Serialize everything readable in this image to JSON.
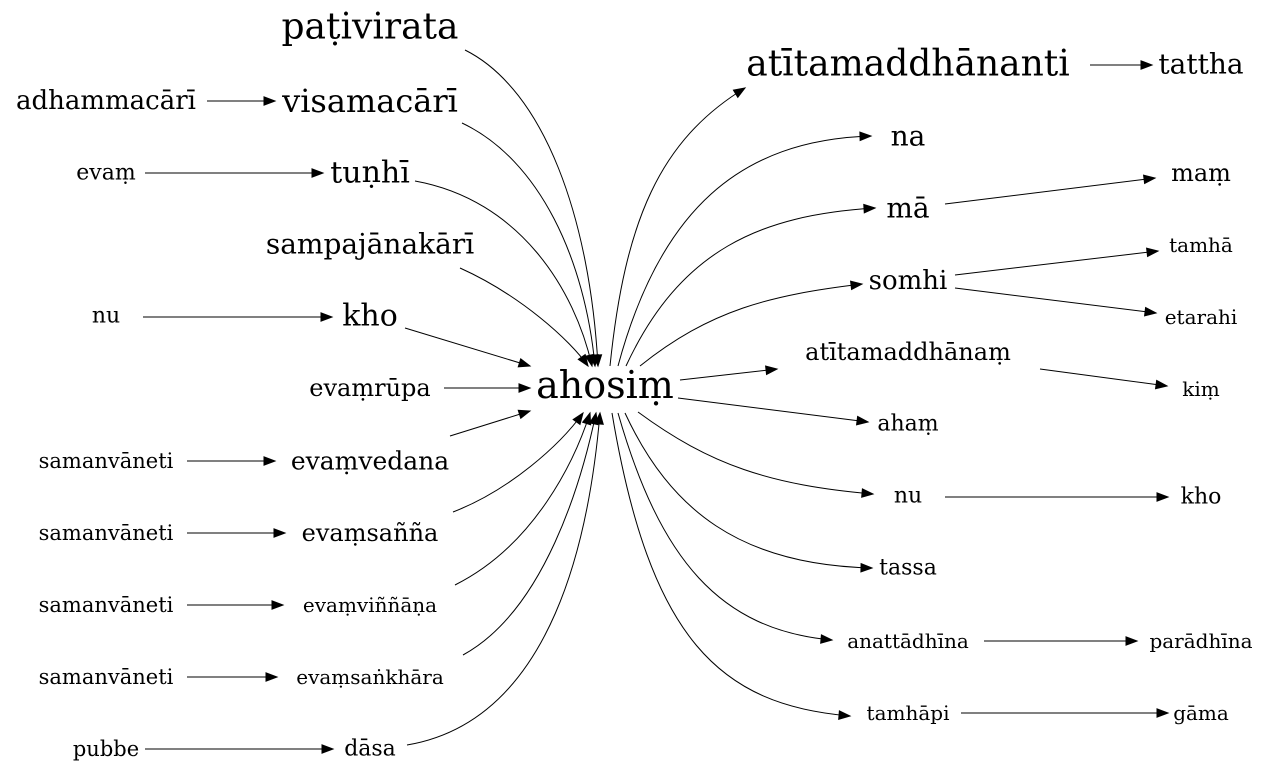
{
  "graph": {
    "center": "ahosiṃ",
    "nodes": {
      "ahosim": "ahosiṃ",
      "pativirata": "paṭivirata",
      "adhammacari": "adhammacārī",
      "visamacari": "visamacārī",
      "evam": "evaṃ",
      "tunhi": "tuṇhī",
      "sampajanakari": "sampajānakārī",
      "nu_left": "nu",
      "kho_left": "kho",
      "evamrupa": "evaṃrūpa",
      "samanvaneti_1": "samanvāneti",
      "evamvedana": "evaṃvedana",
      "samanvaneti_2": "samanvāneti",
      "evamsanna": "evaṃsañña",
      "samanvaneti_3": "samanvāneti",
      "evamvinnana": "evaṃviññāṇa",
      "samanvaneti_4": "samanvāneti",
      "evamsankhara": "evaṃsaṅkhāra",
      "pubbe": "pubbe",
      "dasa": "dāsa",
      "atitamaddhananti": "atītamaddhānanti",
      "tattha": "tattha",
      "na": "na",
      "ma": "mā",
      "mam": "maṃ",
      "somhi": "somhi",
      "tamha": "tamhā",
      "etarahi": "etarahi",
      "atitamaddhanam": "atītamaddhānaṃ",
      "kim": "kiṃ",
      "aham": "ahaṃ",
      "nu_right": "nu",
      "kho_right": "kho",
      "tassa": "tassa",
      "anattadhina": "anattādhīna",
      "paradhina": "parādhīna",
      "tamhapi": "tamhāpi",
      "gama": "gāma"
    },
    "edges": [
      [
        "pativirata",
        "ahosim"
      ],
      [
        "adhammacari",
        "visamacari"
      ],
      [
        "visamacari",
        "ahosim"
      ],
      [
        "evam",
        "tunhi"
      ],
      [
        "tunhi",
        "ahosim"
      ],
      [
        "sampajanakari",
        "ahosim"
      ],
      [
        "nu_left",
        "kho_left"
      ],
      [
        "kho_left",
        "ahosim"
      ],
      [
        "evamrupa",
        "ahosim"
      ],
      [
        "samanvaneti_1",
        "evamvedana"
      ],
      [
        "evamvedana",
        "ahosim"
      ],
      [
        "samanvaneti_2",
        "evamsanna"
      ],
      [
        "evamsanna",
        "ahosim"
      ],
      [
        "samanvaneti_3",
        "evamvinnana"
      ],
      [
        "evamvinnana",
        "ahosim"
      ],
      [
        "samanvaneti_4",
        "evamsankhara"
      ],
      [
        "evamsankhara",
        "ahosim"
      ],
      [
        "pubbe",
        "dasa"
      ],
      [
        "dasa",
        "ahosim"
      ],
      [
        "ahosim",
        "atitamaddhananti"
      ],
      [
        "atitamaddhananti",
        "tattha"
      ],
      [
        "ahosim",
        "na"
      ],
      [
        "ahosim",
        "ma"
      ],
      [
        "ma",
        "mam"
      ],
      [
        "ahosim",
        "somhi"
      ],
      [
        "somhi",
        "tamha"
      ],
      [
        "somhi",
        "etarahi"
      ],
      [
        "ahosim",
        "atitamaddhanam"
      ],
      [
        "atitamaddhanam",
        "kim"
      ],
      [
        "ahosim",
        "aham"
      ],
      [
        "ahosim",
        "nu_right"
      ],
      [
        "nu_right",
        "kho_right"
      ],
      [
        "ahosim",
        "tassa"
      ],
      [
        "ahosim",
        "anattadhina"
      ],
      [
        "anattadhina",
        "paradhina"
      ],
      [
        "ahosim",
        "tamhapi"
      ],
      [
        "tamhapi",
        "gama"
      ]
    ]
  }
}
